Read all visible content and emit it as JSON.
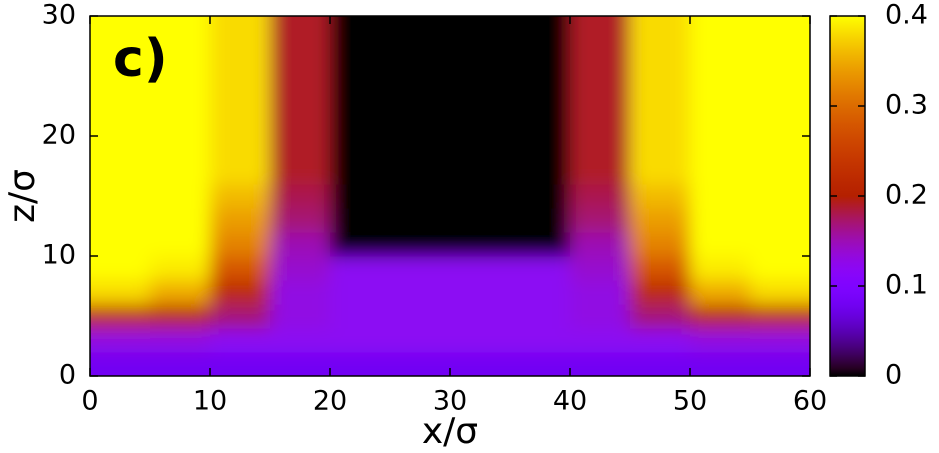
{
  "chart_data": {
    "type": "heatmap",
    "annotation": "c)",
    "xlabel": "x/σ",
    "ylabel": "z/σ",
    "x": [
      2.5,
      7.5,
      12.5,
      17.5,
      22.5,
      27.5,
      32.5,
      37.5,
      42.5,
      47.5,
      52.5,
      57.5
    ],
    "y": [
      1,
      3,
      5,
      7,
      9,
      11,
      13,
      15,
      17,
      19,
      21,
      23,
      25,
      27,
      29
    ],
    "values": [
      [
        0.08,
        0.08,
        0.08,
        0.08,
        0.08,
        0.08,
        0.08,
        0.08,
        0.08,
        0.08,
        0.08,
        0.08
      ],
      [
        0.13,
        0.13,
        0.12,
        0.12,
        0.12,
        0.12,
        0.12,
        0.12,
        0.12,
        0.12,
        0.13,
        0.13
      ],
      [
        0.22,
        0.21,
        0.17,
        0.13,
        0.12,
        0.12,
        0.12,
        0.12,
        0.13,
        0.17,
        0.21,
        0.22
      ],
      [
        0.38,
        0.35,
        0.22,
        0.13,
        0.12,
        0.12,
        0.12,
        0.12,
        0.13,
        0.22,
        0.35,
        0.38
      ],
      [
        0.4,
        0.39,
        0.28,
        0.14,
        0.12,
        0.12,
        0.12,
        0.12,
        0.14,
        0.28,
        0.39,
        0.4
      ],
      [
        0.4,
        0.4,
        0.32,
        0.15,
        0,
        0,
        0,
        0,
        0.15,
        0.32,
        0.4,
        0.4
      ],
      [
        0.4,
        0.4,
        0.34,
        0.17,
        0,
        0,
        0,
        0,
        0.17,
        0.34,
        0.4,
        0.4
      ],
      [
        0.4,
        0.4,
        0.36,
        0.18,
        0,
        0,
        0,
        0,
        0.18,
        0.36,
        0.4,
        0.4
      ],
      [
        0.4,
        0.4,
        0.38,
        0.19,
        0,
        0,
        0,
        0,
        0.19,
        0.38,
        0.4,
        0.4
      ],
      [
        0.4,
        0.4,
        0.38,
        0.19,
        0,
        0,
        0,
        0,
        0.19,
        0.38,
        0.4,
        0.4
      ],
      [
        0.4,
        0.4,
        0.38,
        0.19,
        0,
        0,
        0,
        0,
        0.19,
        0.38,
        0.4,
        0.4
      ],
      [
        0.4,
        0.4,
        0.38,
        0.19,
        0,
        0,
        0,
        0,
        0.19,
        0.38,
        0.4,
        0.4
      ],
      [
        0.4,
        0.4,
        0.38,
        0.19,
        0,
        0,
        0,
        0,
        0.19,
        0.38,
        0.4,
        0.4
      ],
      [
        0.4,
        0.4,
        0.38,
        0.19,
        0,
        0,
        0,
        0,
        0.19,
        0.38,
        0.4,
        0.4
      ],
      [
        0.4,
        0.4,
        0.38,
        0.19,
        0,
        0,
        0,
        0,
        0.19,
        0.38,
        0.4,
        0.4
      ]
    ],
    "xlim": [
      0,
      60
    ],
    "ylim": [
      0,
      30
    ],
    "xticks": [
      0,
      10,
      20,
      30,
      40,
      50,
      60
    ],
    "yticks": [
      0,
      10,
      20,
      30
    ],
    "colorbar": {
      "lim": [
        0,
        0.4
      ],
      "ticks": [
        0,
        0.1,
        0.2,
        0.3,
        0.4
      ]
    }
  }
}
